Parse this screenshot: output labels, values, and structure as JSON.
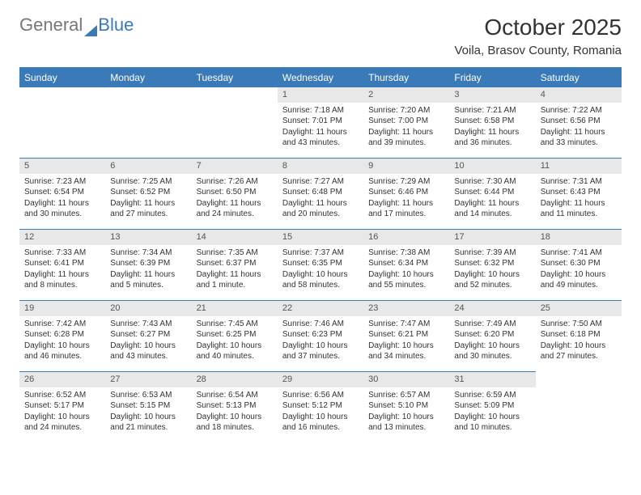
{
  "brand": {
    "part1": "General",
    "part2": "Blue"
  },
  "header": {
    "month_title": "October 2025",
    "location": "Voila, Brasov County, Romania"
  },
  "colors": {
    "accent": "#3a7ab8",
    "header_bg": "#3a7ab8",
    "header_text": "#ffffff",
    "daynum_bg": "#e8e8e8",
    "text": "#333333"
  },
  "calendar": {
    "day_headers": [
      "Sunday",
      "Monday",
      "Tuesday",
      "Wednesday",
      "Thursday",
      "Friday",
      "Saturday"
    ],
    "leading_blanks": 3,
    "days": [
      {
        "n": 1,
        "sunrise": "7:18 AM",
        "sunset": "7:01 PM",
        "daylight": "11 hours and 43 minutes."
      },
      {
        "n": 2,
        "sunrise": "7:20 AM",
        "sunset": "7:00 PM",
        "daylight": "11 hours and 39 minutes."
      },
      {
        "n": 3,
        "sunrise": "7:21 AM",
        "sunset": "6:58 PM",
        "daylight": "11 hours and 36 minutes."
      },
      {
        "n": 4,
        "sunrise": "7:22 AM",
        "sunset": "6:56 PM",
        "daylight": "11 hours and 33 minutes."
      },
      {
        "n": 5,
        "sunrise": "7:23 AM",
        "sunset": "6:54 PM",
        "daylight": "11 hours and 30 minutes."
      },
      {
        "n": 6,
        "sunrise": "7:25 AM",
        "sunset": "6:52 PM",
        "daylight": "11 hours and 27 minutes."
      },
      {
        "n": 7,
        "sunrise": "7:26 AM",
        "sunset": "6:50 PM",
        "daylight": "11 hours and 24 minutes."
      },
      {
        "n": 8,
        "sunrise": "7:27 AM",
        "sunset": "6:48 PM",
        "daylight": "11 hours and 20 minutes."
      },
      {
        "n": 9,
        "sunrise": "7:29 AM",
        "sunset": "6:46 PM",
        "daylight": "11 hours and 17 minutes."
      },
      {
        "n": 10,
        "sunrise": "7:30 AM",
        "sunset": "6:44 PM",
        "daylight": "11 hours and 14 minutes."
      },
      {
        "n": 11,
        "sunrise": "7:31 AM",
        "sunset": "6:43 PM",
        "daylight": "11 hours and 11 minutes."
      },
      {
        "n": 12,
        "sunrise": "7:33 AM",
        "sunset": "6:41 PM",
        "daylight": "11 hours and 8 minutes."
      },
      {
        "n": 13,
        "sunrise": "7:34 AM",
        "sunset": "6:39 PM",
        "daylight": "11 hours and 5 minutes."
      },
      {
        "n": 14,
        "sunrise": "7:35 AM",
        "sunset": "6:37 PM",
        "daylight": "11 hours and 1 minute."
      },
      {
        "n": 15,
        "sunrise": "7:37 AM",
        "sunset": "6:35 PM",
        "daylight": "10 hours and 58 minutes."
      },
      {
        "n": 16,
        "sunrise": "7:38 AM",
        "sunset": "6:34 PM",
        "daylight": "10 hours and 55 minutes."
      },
      {
        "n": 17,
        "sunrise": "7:39 AM",
        "sunset": "6:32 PM",
        "daylight": "10 hours and 52 minutes."
      },
      {
        "n": 18,
        "sunrise": "7:41 AM",
        "sunset": "6:30 PM",
        "daylight": "10 hours and 49 minutes."
      },
      {
        "n": 19,
        "sunrise": "7:42 AM",
        "sunset": "6:28 PM",
        "daylight": "10 hours and 46 minutes."
      },
      {
        "n": 20,
        "sunrise": "7:43 AM",
        "sunset": "6:27 PM",
        "daylight": "10 hours and 43 minutes."
      },
      {
        "n": 21,
        "sunrise": "7:45 AM",
        "sunset": "6:25 PM",
        "daylight": "10 hours and 40 minutes."
      },
      {
        "n": 22,
        "sunrise": "7:46 AM",
        "sunset": "6:23 PM",
        "daylight": "10 hours and 37 minutes."
      },
      {
        "n": 23,
        "sunrise": "7:47 AM",
        "sunset": "6:21 PM",
        "daylight": "10 hours and 34 minutes."
      },
      {
        "n": 24,
        "sunrise": "7:49 AM",
        "sunset": "6:20 PM",
        "daylight": "10 hours and 30 minutes."
      },
      {
        "n": 25,
        "sunrise": "7:50 AM",
        "sunset": "6:18 PM",
        "daylight": "10 hours and 27 minutes."
      },
      {
        "n": 26,
        "sunrise": "6:52 AM",
        "sunset": "5:17 PM",
        "daylight": "10 hours and 24 minutes."
      },
      {
        "n": 27,
        "sunrise": "6:53 AM",
        "sunset": "5:15 PM",
        "daylight": "10 hours and 21 minutes."
      },
      {
        "n": 28,
        "sunrise": "6:54 AM",
        "sunset": "5:13 PM",
        "daylight": "10 hours and 18 minutes."
      },
      {
        "n": 29,
        "sunrise": "6:56 AM",
        "sunset": "5:12 PM",
        "daylight": "10 hours and 16 minutes."
      },
      {
        "n": 30,
        "sunrise": "6:57 AM",
        "sunset": "5:10 PM",
        "daylight": "10 hours and 13 minutes."
      },
      {
        "n": 31,
        "sunrise": "6:59 AM",
        "sunset": "5:09 PM",
        "daylight": "10 hours and 10 minutes."
      }
    ],
    "labels": {
      "sunrise": "Sunrise:",
      "sunset": "Sunset:",
      "daylight": "Daylight:"
    }
  }
}
